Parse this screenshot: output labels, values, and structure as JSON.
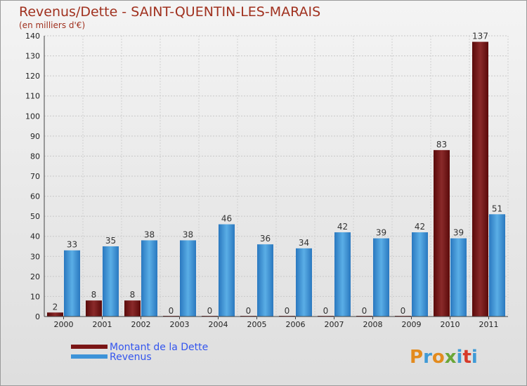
{
  "chart_data": {
    "type": "bar",
    "title": "Revenus/Dette - SAINT-QUENTIN-LES-MARAIS",
    "subtitle": "(en milliers d'€)",
    "xlabel": "",
    "ylabel": "",
    "ylim": [
      0,
      140
    ],
    "yticks": [
      0,
      10,
      20,
      30,
      40,
      50,
      60,
      70,
      80,
      90,
      100,
      110,
      120,
      130,
      140
    ],
    "grid": true,
    "categories": [
      "2000",
      "2001",
      "2002",
      "2003",
      "2004",
      "2005",
      "2006",
      "2007",
      "2008",
      "2009",
      "2010",
      "2011"
    ],
    "series": [
      {
        "name": "Montant de la Dette",
        "color": "#7a1515",
        "values": [
          2,
          8,
          8,
          0,
          0,
          0,
          0,
          0,
          0,
          0,
          83,
          137
        ],
        "labels": [
          "2",
          "8",
          "8",
          "0",
          "0",
          "0",
          "0",
          "0",
          "0",
          "0",
          "83",
          "137"
        ]
      },
      {
        "name": "Revenus",
        "color": "#3d93d8",
        "values": [
          33,
          35,
          38,
          38,
          46,
          36,
          34,
          42,
          39,
          42,
          39,
          51
        ],
        "labels": [
          "33",
          "35",
          "38",
          "38",
          "46",
          "36",
          "34",
          "42",
          "39",
          "42",
          "39",
          "51"
        ]
      }
    ],
    "legend": {
      "placement": "bottom-left",
      "items": [
        "Montant de la Dette",
        "Revenus"
      ]
    }
  },
  "logo": {
    "letters": [
      "P",
      "r",
      "o",
      "x",
      "i",
      "t",
      "i"
    ],
    "colors": [
      "#e38b1e",
      "#3f9ad6",
      "#e38b1e",
      "#6aa638",
      "#3f9ad6",
      "#d63a2a",
      "#3f9ad6"
    ]
  }
}
